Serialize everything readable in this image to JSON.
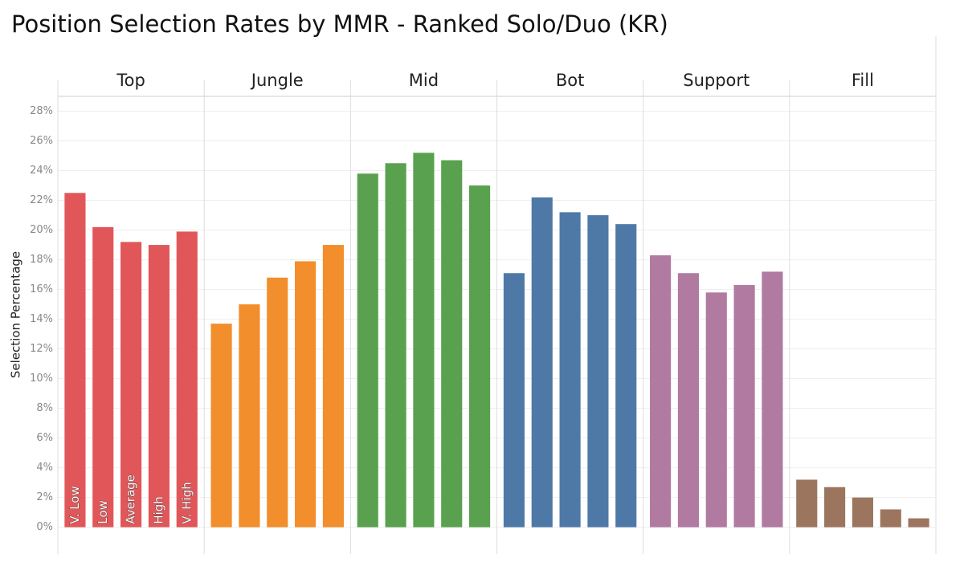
{
  "chart_data": {
    "type": "bar",
    "title": "Position Selection Rates by MMR - Ranked Solo/Duo (KR)",
    "y_label": "Selection Percentage",
    "categories": [
      "V. Low",
      "Low",
      "Average",
      "High",
      "V. High"
    ],
    "series": [
      {
        "name": "Top",
        "color": "#e15759",
        "values": [
          22.5,
          20.2,
          19.2,
          19.0,
          19.9
        ]
      },
      {
        "name": "Jungle",
        "color": "#f28e2b",
        "values": [
          13.7,
          15.0,
          16.8,
          17.9,
          19.0
        ]
      },
      {
        "name": "Mid",
        "color": "#59a14f",
        "values": [
          23.8,
          24.5,
          25.2,
          24.7,
          23.0
        ]
      },
      {
        "name": "Bot",
        "color": "#4e79a7",
        "values": [
          17.1,
          22.2,
          21.2,
          21.0,
          20.4
        ]
      },
      {
        "name": "Support",
        "color": "#b07aa1",
        "values": [
          18.3,
          17.1,
          15.8,
          16.3,
          17.2
        ]
      },
      {
        "name": "Fill",
        "color": "#9c755f",
        "values": [
          3.2,
          2.7,
          2.0,
          1.2,
          0.6
        ]
      }
    ],
    "ylim": [
      -1.8,
      29.0
    ],
    "yticks": [
      {
        "value": 0,
        "label": "0%"
      },
      {
        "value": 2,
        "label": "2%"
      },
      {
        "value": 4,
        "label": "4%"
      },
      {
        "value": 6,
        "label": "6%"
      },
      {
        "value": 8,
        "label": "8%"
      },
      {
        "value": 10,
        "label": "10%"
      },
      {
        "value": 12,
        "label": "12%"
      },
      {
        "value": 14,
        "label": "14%"
      },
      {
        "value": 16,
        "label": "16%"
      },
      {
        "value": 18,
        "label": "18%"
      },
      {
        "value": 20,
        "label": "20%"
      },
      {
        "value": 22,
        "label": "22%"
      },
      {
        "value": 24,
        "label": "24%"
      },
      {
        "value": 26,
        "label": "26%"
      },
      {
        "value": 28,
        "label": "28%"
      }
    ],
    "grid": true
  }
}
